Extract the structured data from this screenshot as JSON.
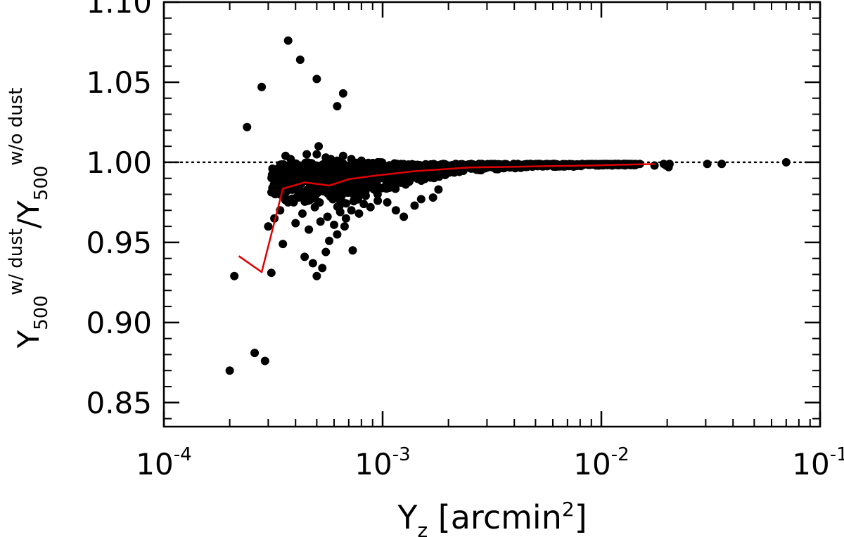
{
  "chart_data": {
    "type": "scatter",
    "xscale": "log",
    "xlim": [
      0.0001,
      0.1
    ],
    "ylim": [
      0.835,
      1.1
    ],
    "xlabel": {
      "main": "Y",
      "sub": "z",
      "rest": " [arcmin",
      "sup": "2",
      "close": "]"
    },
    "ylabel": {
      "main1": "Y",
      "sub1": "500",
      "sup1": "w/ dust",
      "slash": "/Y",
      "sub2": "500",
      "sup2": "w/o dust"
    },
    "x_ticks": [
      {
        "value": 0.0001,
        "base": "10",
        "exp": "-4"
      },
      {
        "value": 0.001,
        "base": "10",
        "exp": "-3"
      },
      {
        "value": 0.01,
        "base": "10",
        "exp": "-2"
      },
      {
        "value": 0.1,
        "base": "10",
        "exp": "-1"
      }
    ],
    "y_ticks": [
      {
        "value": 0.85,
        "label": "0.85"
      },
      {
        "value": 0.9,
        "label": "0.90"
      },
      {
        "value": 0.95,
        "label": "0.95"
      },
      {
        "value": 1.0,
        "label": "1.00"
      },
      {
        "value": 1.05,
        "label": "1.05"
      },
      {
        "value": 1.1,
        "label": "1.10"
      }
    ],
    "reference_line": {
      "y": 1.0,
      "style": "dotted",
      "color": "#000000"
    },
    "series": [
      {
        "kind": "points",
        "color": "#000000",
        "points": [
          [
            0.0002,
            0.87
          ],
          [
            0.00021,
            0.929
          ],
          [
            0.00024,
            1.022
          ],
          [
            0.00026,
            0.881
          ],
          [
            0.00028,
            1.047
          ],
          [
            0.00029,
            0.876
          ],
          [
            0.00031,
            0.931
          ],
          [
            0.00035,
            0.949
          ],
          [
            0.00037,
            1.076
          ],
          [
            0.00042,
            1.064
          ],
          [
            0.0005,
            1.052
          ],
          [
            0.00062,
            1.035
          ],
          [
            0.00066,
            1.043
          ],
          [
            0.00044,
            0.941
          ],
          [
            0.00048,
            0.937
          ],
          [
            0.0005,
            0.929
          ],
          [
            0.00053,
            0.934
          ],
          [
            0.00055,
            0.944
          ],
          [
            0.00057,
            0.951
          ],
          [
            0.00062,
            0.955
          ],
          [
            0.00067,
            0.96
          ],
          [
            0.00073,
            0.945
          ],
          [
            0.0003,
            0.96
          ],
          [
            0.00032,
            0.965
          ],
          [
            0.00034,
            0.97
          ],
          [
            0.00037,
            0.975
          ],
          [
            0.0004,
            0.962
          ],
          [
            0.00043,
            0.968
          ],
          [
            0.00046,
            0.958
          ],
          [
            0.00049,
            0.972
          ],
          [
            0.00052,
            0.963
          ],
          [
            0.00056,
            0.966
          ],
          [
            0.0006,
            0.961
          ],
          [
            0.00064,
            0.969
          ],
          [
            0.00068,
            0.965
          ],
          [
            0.00072,
            0.97
          ],
          [
            0.00078,
            0.968
          ],
          [
            0.00082,
            0.974
          ],
          [
            0.00088,
            0.972
          ],
          [
            0.00095,
            0.976
          ],
          [
            0.00105,
            0.975
          ],
          [
            0.00115,
            0.97
          ],
          [
            0.00125,
            0.966
          ],
          [
            0.0014,
            0.973
          ],
          [
            0.0015,
            0.977
          ],
          [
            0.0017,
            0.978
          ],
          [
            0.0018,
            0.983
          ],
          [
            0.00036,
            1.004
          ],
          [
            0.00038,
            1.002
          ],
          [
            0.0004,
            0.999
          ],
          [
            0.00045,
            1.005
          ],
          [
            0.0005,
            1.005
          ],
          [
            0.00051,
            1.01
          ],
          [
            0.00055,
            1.003
          ],
          [
            0.00058,
            1.002
          ],
          [
            0.00062,
            1.001
          ],
          [
            0.00066,
            1.004
          ],
          [
            0.00072,
            1.002
          ],
          [
            0.0008,
            1.001
          ],
          [
            0.00085,
            0.999
          ],
          [
            0.00095,
            1.0
          ]
        ]
      },
      {
        "kind": "dense-band",
        "color": "#000000",
        "band": [
          [
            0.00031,
            0.978,
            0.998
          ],
          [
            0.00035,
            0.976,
            0.999
          ],
          [
            0.0004,
            0.974,
            1.0
          ],
          [
            0.00046,
            0.972,
            1.0
          ],
          [
            0.00052,
            0.971,
            1.0
          ],
          [
            0.0006,
            0.97,
            1.0
          ],
          [
            0.0007,
            0.973,
            1.0
          ],
          [
            0.0008,
            0.976,
            1.0
          ],
          [
            0.0009,
            0.979,
            1.0
          ],
          [
            0.001,
            0.981,
            1.0
          ],
          [
            0.0012,
            0.984,
            0.999
          ],
          [
            0.0014,
            0.987,
            0.999
          ],
          [
            0.0017,
            0.99,
            0.999
          ],
          [
            0.002,
            0.992,
            0.999
          ],
          [
            0.0025,
            0.994,
            0.999
          ],
          [
            0.003,
            0.995,
            0.999
          ],
          [
            0.004,
            0.996,
            0.999
          ],
          [
            0.005,
            0.997,
            0.999
          ],
          [
            0.007,
            0.997,
            0.999
          ],
          [
            0.01,
            0.998,
            0.999
          ],
          [
            0.012,
            0.998,
            0.999
          ],
          [
            0.0145,
            0.998,
            0.999
          ]
        ],
        "extra_points": [
          [
            0.015,
            0.999
          ],
          [
            0.0175,
            0.998
          ],
          [
            0.0193,
            0.999
          ],
          [
            0.0198,
            0.998
          ],
          [
            0.0203,
            0.997
          ],
          [
            0.0205,
            0.999
          ],
          [
            0.0305,
            0.999
          ],
          [
            0.0355,
            0.999
          ],
          [
            0.07,
            1.0
          ]
        ]
      },
      {
        "kind": "line",
        "color": "#e00000",
        "points": [
          [
            0.00022,
            0.9415
          ],
          [
            0.00028,
            0.9315
          ],
          [
            0.00035,
            0.9835
          ],
          [
            0.00044,
            0.9875
          ],
          [
            0.00057,
            0.9855
          ],
          [
            0.0007,
            0.9895
          ],
          [
            0.0009,
            0.9915
          ],
          [
            0.0014,
            0.9945
          ],
          [
            0.0018,
            0.9955
          ],
          [
            0.0025,
            0.9968
          ],
          [
            0.004,
            0.9972
          ],
          [
            0.006,
            0.9977
          ],
          [
            0.009,
            0.998
          ],
          [
            0.0125,
            0.9985
          ],
          [
            0.0175,
            0.9989
          ]
        ]
      }
    ]
  }
}
